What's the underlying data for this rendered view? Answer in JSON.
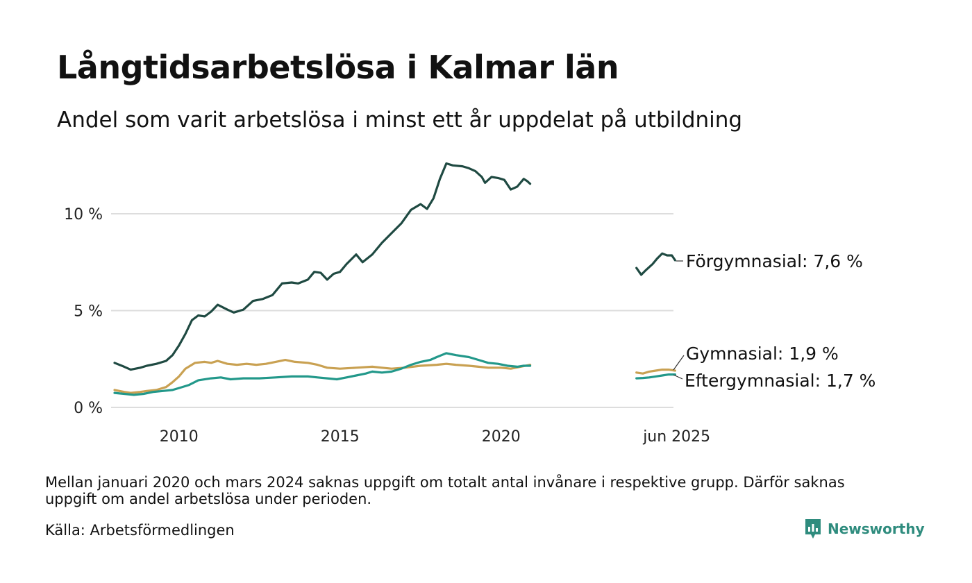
{
  "title": "Långtidsarbetslösa i Kalmar län",
  "subtitle": "Andel som varit arbetslösa i minst ett år uppdelat på utbildning",
  "note": "Mellan januari 2020 och mars 2024 saknas uppgift om totalt antal invånare i respektive grupp. Därför saknas uppgift om andel arbetslösa under perioden.",
  "source": "Källa: Arbetsförmedlingen",
  "brand": {
    "name": "Newsworthy",
    "icon": "newsworthy-logo-icon",
    "color": "#2f8c7e"
  },
  "chart_data": {
    "type": "line",
    "x_unit": "year (decimal)",
    "ylim": [
      0,
      13
    ],
    "y_ticks": [
      {
        "value": 0,
        "label": "0 %"
      },
      {
        "value": 5,
        "label": "5 %"
      },
      {
        "value": 10,
        "label": "10 %"
      }
    ],
    "x_ticks": [
      {
        "value": 2010,
        "label": "2010"
      },
      {
        "value": 2015,
        "label": "2015"
      },
      {
        "value": 2020,
        "label": "2020"
      },
      {
        "value": 2025.45,
        "label": "jun 2025"
      }
    ],
    "grid": "horizontal",
    "series": [
      {
        "name": "Förgymnasial",
        "color": "#1f4a42",
        "end_label": "Förgymnasial: 7,6 %",
        "segments": [
          [
            [
              2008.0,
              2.3
            ],
            [
              2008.3,
              2.1
            ],
            [
              2008.5,
              1.95
            ],
            [
              2008.8,
              2.05
            ],
            [
              2009.0,
              2.15
            ],
            [
              2009.3,
              2.25
            ],
            [
              2009.6,
              2.4
            ],
            [
              2009.8,
              2.7
            ],
            [
              2010.0,
              3.2
            ],
            [
              2010.2,
              3.8
            ],
            [
              2010.4,
              4.5
            ],
            [
              2010.6,
              4.75
            ],
            [
              2010.8,
              4.7
            ],
            [
              2011.0,
              4.95
            ],
            [
              2011.2,
              5.3
            ],
            [
              2011.5,
              5.05
            ],
            [
              2011.7,
              4.9
            ],
            [
              2012.0,
              5.05
            ],
            [
              2012.3,
              5.5
            ],
            [
              2012.6,
              5.6
            ],
            [
              2012.9,
              5.8
            ],
            [
              2013.2,
              6.4
            ],
            [
              2013.5,
              6.45
            ],
            [
              2013.7,
              6.4
            ],
            [
              2014.0,
              6.6
            ],
            [
              2014.2,
              7.0
            ],
            [
              2014.4,
              6.95
            ],
            [
              2014.6,
              6.6
            ],
            [
              2014.8,
              6.9
            ],
            [
              2015.0,
              7.0
            ],
            [
              2015.2,
              7.4
            ],
            [
              2015.5,
              7.9
            ],
            [
              2015.7,
              7.5
            ],
            [
              2016.0,
              7.9
            ],
            [
              2016.3,
              8.5
            ],
            [
              2016.6,
              9.0
            ],
            [
              2016.9,
              9.5
            ],
            [
              2017.2,
              10.2
            ],
            [
              2017.5,
              10.5
            ],
            [
              2017.7,
              10.25
            ],
            [
              2017.9,
              10.8
            ],
            [
              2018.1,
              11.8
            ],
            [
              2018.3,
              12.6
            ],
            [
              2018.5,
              12.5
            ],
            [
              2018.8,
              12.45
            ],
            [
              2019.0,
              12.35
            ],
            [
              2019.2,
              12.2
            ],
            [
              2019.4,
              11.9
            ],
            [
              2019.5,
              11.6
            ],
            [
              2019.7,
              11.9
            ],
            [
              2019.9,
              11.85
            ],
            [
              2020.1,
              11.75
            ],
            [
              2020.3,
              11.25
            ],
            [
              2020.5,
              11.4
            ],
            [
              2020.7,
              11.8
            ],
            [
              2020.8,
              11.7
            ],
            [
              2020.9,
              11.55
            ]
          ],
          [
            [
              2024.2,
              7.2
            ],
            [
              2024.35,
              6.85
            ],
            [
              2024.5,
              7.1
            ],
            [
              2024.7,
              7.4
            ],
            [
              2024.85,
              7.7
            ],
            [
              2025.0,
              7.95
            ],
            [
              2025.15,
              7.85
            ],
            [
              2025.3,
              7.85
            ],
            [
              2025.4,
              7.6
            ]
          ]
        ]
      },
      {
        "name": "Gymnasial",
        "color": "#c9a152",
        "end_label": "Gymnasial: 1,9 %",
        "segments": [
          [
            [
              2008.0,
              0.9
            ],
            [
              2008.3,
              0.8
            ],
            [
              2008.5,
              0.75
            ],
            [
              2008.8,
              0.8
            ],
            [
              2009.0,
              0.85
            ],
            [
              2009.3,
              0.9
            ],
            [
              2009.6,
              1.05
            ],
            [
              2009.8,
              1.3
            ],
            [
              2010.0,
              1.6
            ],
            [
              2010.2,
              2.0
            ],
            [
              2010.5,
              2.3
            ],
            [
              2010.8,
              2.35
            ],
            [
              2011.0,
              2.3
            ],
            [
              2011.2,
              2.4
            ],
            [
              2011.5,
              2.25
            ],
            [
              2011.8,
              2.2
            ],
            [
              2012.1,
              2.25
            ],
            [
              2012.4,
              2.2
            ],
            [
              2012.7,
              2.25
            ],
            [
              2013.0,
              2.35
            ],
            [
              2013.3,
              2.45
            ],
            [
              2013.6,
              2.35
            ],
            [
              2014.0,
              2.3
            ],
            [
              2014.3,
              2.2
            ],
            [
              2014.6,
              2.05
            ],
            [
              2015.0,
              2.0
            ],
            [
              2015.5,
              2.05
            ],
            [
              2016.0,
              2.1
            ],
            [
              2016.3,
              2.05
            ],
            [
              2016.6,
              2.0
            ],
            [
              2017.0,
              2.05
            ],
            [
              2017.5,
              2.15
            ],
            [
              2018.0,
              2.2
            ],
            [
              2018.3,
              2.25
            ],
            [
              2018.6,
              2.2
            ],
            [
              2019.0,
              2.15
            ],
            [
              2019.3,
              2.1
            ],
            [
              2019.6,
              2.05
            ],
            [
              2020.0,
              2.05
            ],
            [
              2020.3,
              2.0
            ],
            [
              2020.6,
              2.1
            ],
            [
              2020.9,
              2.2
            ]
          ],
          [
            [
              2024.2,
              1.8
            ],
            [
              2024.4,
              1.75
            ],
            [
              2024.6,
              1.85
            ],
            [
              2024.8,
              1.9
            ],
            [
              2025.0,
              1.95
            ],
            [
              2025.2,
              1.95
            ],
            [
              2025.4,
              1.9
            ]
          ]
        ]
      },
      {
        "name": "Eftergymnasial",
        "color": "#22988a",
        "end_label": "Eftergymnasial: 1,7 %",
        "segments": [
          [
            [
              2008.0,
              0.75
            ],
            [
              2008.3,
              0.7
            ],
            [
              2008.6,
              0.65
            ],
            [
              2008.9,
              0.7
            ],
            [
              2009.2,
              0.8
            ],
            [
              2009.5,
              0.85
            ],
            [
              2009.8,
              0.9
            ],
            [
              2010.0,
              1.0
            ],
            [
              2010.3,
              1.15
            ],
            [
              2010.6,
              1.4
            ],
            [
              2011.0,
              1.5
            ],
            [
              2011.3,
              1.55
            ],
            [
              2011.6,
              1.45
            ],
            [
              2012.0,
              1.5
            ],
            [
              2012.5,
              1.5
            ],
            [
              2013.0,
              1.55
            ],
            [
              2013.5,
              1.6
            ],
            [
              2014.0,
              1.6
            ],
            [
              2014.3,
              1.55
            ],
            [
              2014.6,
              1.5
            ],
            [
              2014.9,
              1.45
            ],
            [
              2015.2,
              1.55
            ],
            [
              2015.5,
              1.65
            ],
            [
              2015.8,
              1.75
            ],
            [
              2016.0,
              1.85
            ],
            [
              2016.3,
              1.8
            ],
            [
              2016.6,
              1.85
            ],
            [
              2016.9,
              2.0
            ],
            [
              2017.2,
              2.2
            ],
            [
              2017.5,
              2.35
            ],
            [
              2017.8,
              2.45
            ],
            [
              2018.0,
              2.6
            ],
            [
              2018.3,
              2.8
            ],
            [
              2018.6,
              2.7
            ],
            [
              2019.0,
              2.6
            ],
            [
              2019.3,
              2.45
            ],
            [
              2019.6,
              2.3
            ],
            [
              2019.9,
              2.25
            ],
            [
              2020.2,
              2.15
            ],
            [
              2020.5,
              2.1
            ],
            [
              2020.7,
              2.15
            ],
            [
              2020.9,
              2.15
            ]
          ],
          [
            [
              2024.2,
              1.5
            ],
            [
              2024.4,
              1.52
            ],
            [
              2024.6,
              1.55
            ],
            [
              2024.8,
              1.6
            ],
            [
              2025.0,
              1.65
            ],
            [
              2025.2,
              1.7
            ],
            [
              2025.4,
              1.7
            ]
          ]
        ]
      }
    ]
  }
}
